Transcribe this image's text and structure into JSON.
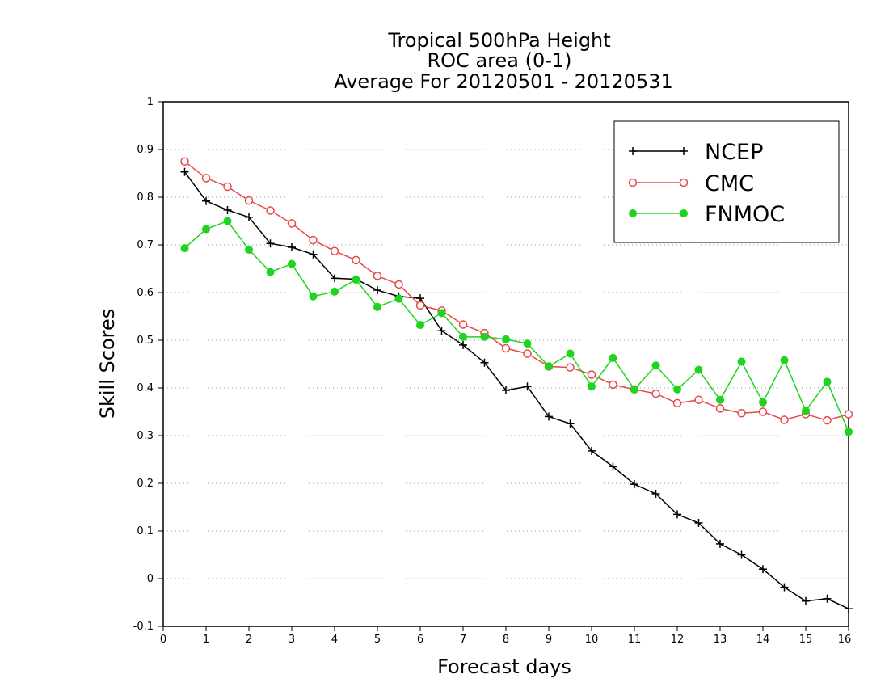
{
  "chart_data": {
    "type": "line",
    "title_lines": [
      "Tropical 500hPa Height",
      "ROC area (0-1)",
      "Average For 20120501 - 20120531"
    ],
    "xlabel": "Forecast days",
    "ylabel": "Skill Scores",
    "xlim": [
      0,
      16
    ],
    "ylim": [
      -0.1,
      1
    ],
    "xticks": [
      0,
      1,
      2,
      3,
      4,
      5,
      6,
      7,
      8,
      9,
      10,
      11,
      12,
      13,
      14,
      15,
      16
    ],
    "yticks": [
      -0.1,
      0,
      0.1,
      0.2,
      0.3,
      0.4,
      0.5,
      0.6,
      0.7,
      0.8,
      0.9,
      1
    ],
    "ytick_labels": [
      "-0.1",
      "0",
      "0.1",
      "0.2",
      "0.3",
      "0.4",
      "0.5",
      "0.6",
      "0.7",
      "0.8",
      "0.9",
      "1"
    ],
    "grid": "horizontal dotted",
    "legend_position": "top-right",
    "x": [
      0.5,
      1,
      1.5,
      2,
      2.5,
      3,
      3.5,
      4,
      4.5,
      5,
      5.5,
      6,
      6.5,
      7,
      7.5,
      8,
      8.5,
      9,
      9.5,
      10,
      10.5,
      11,
      11.5,
      12,
      12.5,
      13,
      13.5,
      14,
      14.5,
      15,
      15.5,
      16
    ],
    "series": [
      {
        "name": "NCEP",
        "color": "#000000",
        "marker": "plus",
        "values": [
          0.853,
          0.792,
          0.773,
          0.758,
          0.703,
          0.695,
          0.68,
          0.63,
          0.628,
          0.605,
          0.592,
          0.588,
          0.52,
          0.49,
          0.453,
          0.395,
          0.403,
          0.34,
          0.325,
          0.268,
          0.235,
          0.198,
          0.178,
          0.135,
          0.117,
          0.073,
          0.05,
          0.02,
          -0.018,
          -0.047,
          -0.042,
          -0.063
        ]
      },
      {
        "name": "CMC",
        "color": "#e84848",
        "marker": "open-circle",
        "values": [
          0.875,
          0.84,
          0.822,
          0.793,
          0.772,
          0.745,
          0.71,
          0.687,
          0.668,
          0.635,
          0.617,
          0.573,
          0.562,
          0.533,
          0.515,
          0.483,
          0.472,
          0.445,
          0.443,
          0.428,
          0.407,
          0.397,
          0.388,
          0.368,
          0.375,
          0.357,
          0.347,
          0.35,
          0.333,
          0.345,
          0.332,
          0.345
        ]
      },
      {
        "name": "FNMOC",
        "color": "#1ed41e",
        "marker": "filled-circle",
        "values": [
          0.693,
          0.733,
          0.75,
          0.69,
          0.643,
          0.66,
          0.592,
          0.602,
          0.627,
          0.57,
          0.587,
          0.532,
          0.557,
          0.507,
          0.507,
          0.502,
          0.493,
          0.445,
          0.472,
          0.403,
          0.463,
          0.397,
          0.447,
          0.397,
          0.438,
          0.375,
          0.455,
          0.37,
          0.458,
          0.352,
          0.413,
          0.308
        ]
      }
    ]
  }
}
